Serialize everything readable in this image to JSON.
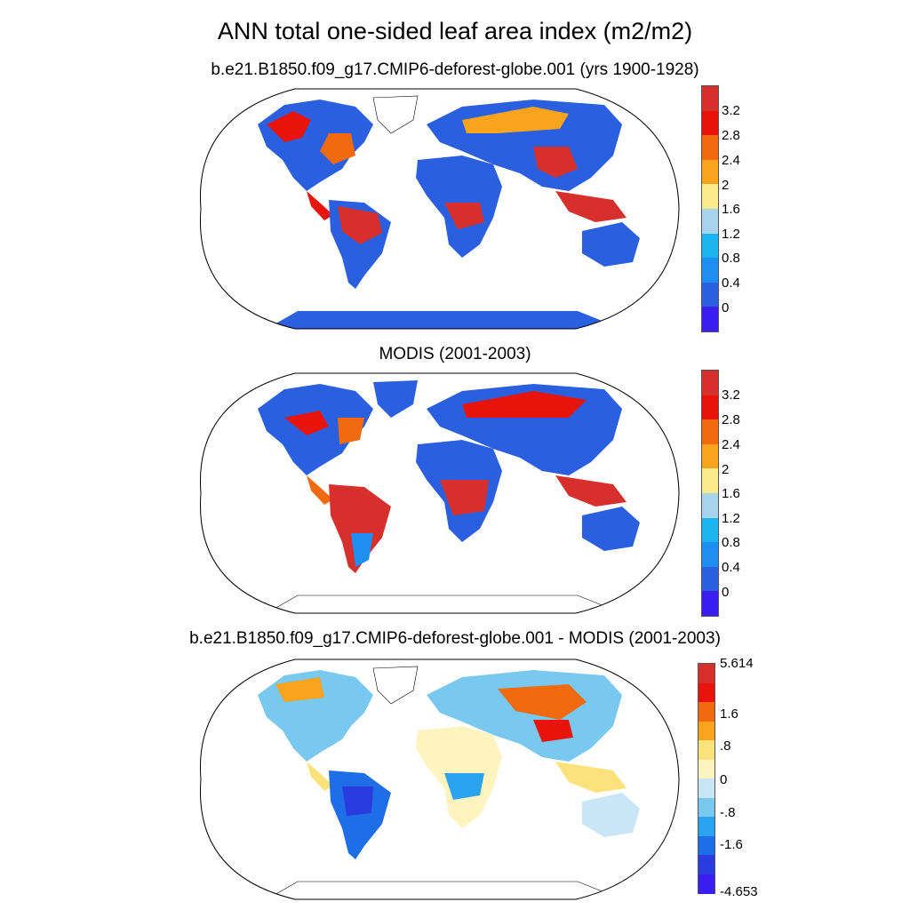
{
  "figure": {
    "title": "ANN total one-sided leaf area index (m2/m2)"
  },
  "panels": [
    {
      "subtitle": "b.e21.B1850.f09_g17.CMIP6-deforest-globe.001 (yrs 1900-1928)",
      "colorbar_labels": [
        "3.2",
        "2.8",
        "2.4",
        "2",
        "1.6",
        "1.2",
        "0.8",
        "0.4",
        "0"
      ],
      "colorbar_colors": [
        "#d7302c",
        "#e8140c",
        "#f26a10",
        "#f9a41c",
        "#fbeb8c",
        "#a8d4ee",
        "#1cb4f0",
        "#1e8ef0",
        "#2a5fe0",
        "#3a1ef0"
      ]
    },
    {
      "subtitle": "MODIS (2001-2003)",
      "colorbar_labels": [
        "3.2",
        "2.8",
        "2.4",
        "2",
        "1.6",
        "1.2",
        "0.8",
        "0.4",
        "0"
      ],
      "colorbar_colors": [
        "#d7302c",
        "#e8140c",
        "#f26a10",
        "#f9a41c",
        "#fbeb8c",
        "#a8d4ee",
        "#1cb4f0",
        "#1e8ef0",
        "#2a5fe0",
        "#3a1ef0"
      ]
    },
    {
      "subtitle": "b.e21.B1850.f09_g17.CMIP6-deforest-globe.001 - MODIS (2001-2003)",
      "colorbar_labels": [
        "5.614",
        "1.6",
        ".8",
        "0",
        "-.8",
        "-1.6",
        "-4.653"
      ],
      "colorbar_colors": [
        "#d7302c",
        "#e8140c",
        "#f26a10",
        "#f9a41c",
        "#fbe27a",
        "#fdf4c0",
        "#c8e6f6",
        "#78c8f0",
        "#2aa4f0",
        "#1e6ee8",
        "#2a3ce0",
        "#3a1ef0"
      ]
    }
  ]
}
